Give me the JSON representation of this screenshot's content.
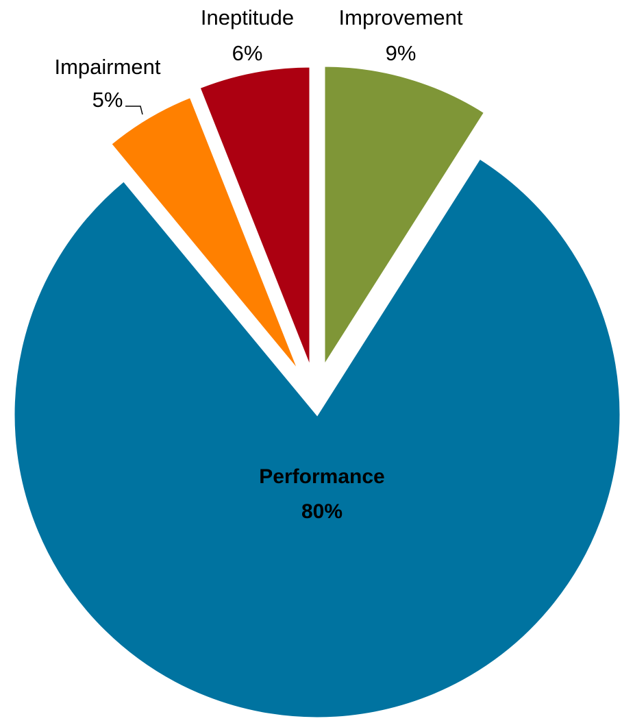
{
  "chart_data": {
    "type": "pie",
    "title": "",
    "slices": [
      {
        "label": "Improvement",
        "value": 9,
        "display": "9%",
        "color": "#7f9637"
      },
      {
        "label": "Performance",
        "value": 80,
        "display": "80%",
        "color": "#0073a0"
      },
      {
        "label": "Impairment",
        "value": 5,
        "display": "5%",
        "color": "#ff8000"
      },
      {
        "label": "Ineptitude",
        "value": 6,
        "display": "6%",
        "color": "#ac0011"
      }
    ],
    "legend": "none",
    "data_labels": "category and percentage"
  }
}
